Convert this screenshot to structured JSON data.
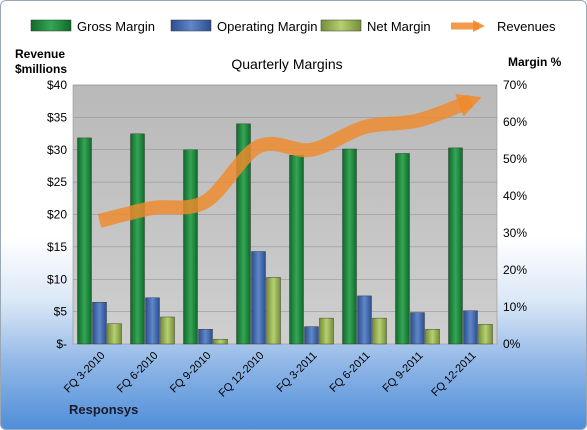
{
  "chart_data": {
    "type": "bar",
    "title": "Quarterly Margins",
    "categories": [
      "FQ 3-2010",
      "FQ 6-2010",
      "FQ 9-2010",
      "FQ 12-2010",
      "FQ 3-2011",
      "FQ 6-2011",
      "FQ 9-2011",
      "FQ 12-2011"
    ],
    "series": [
      {
        "name": "Gross Margin",
        "type": "bar",
        "axis": "right",
        "unit": "%",
        "color": "#1e8a3e",
        "values": [
          55.7,
          56.8,
          52.5,
          59.5,
          51.0,
          52.7,
          51.5,
          53.0
        ]
      },
      {
        "name": "Operating Margin",
        "type": "bar",
        "axis": "right",
        "unit": "%",
        "color": "#3f68b0",
        "values": [
          11.3,
          12.5,
          4.0,
          25.0,
          4.7,
          13.0,
          8.5,
          9.0
        ]
      },
      {
        "name": "Net Margin",
        "type": "bar",
        "axis": "right",
        "unit": "%",
        "color": "#98b552",
        "values": [
          5.5,
          7.3,
          1.3,
          18.0,
          7.0,
          7.0,
          4.0,
          5.3
        ]
      },
      {
        "name": "Revenues",
        "type": "line",
        "axis": "left",
        "unit": "$millions",
        "color": "#f08a2c",
        "values": [
          19.0,
          21.0,
          22.0,
          30.5,
          30.0,
          33.5,
          34.5,
          37.5
        ]
      }
    ],
    "y_left": {
      "label_line1": "Revenue",
      "label_line2": "$millions",
      "range": [
        0,
        40
      ],
      "ticks": [
        "$-",
        "$5",
        "$10",
        "$15",
        "$20",
        "$25",
        "$30",
        "$35",
        "$40"
      ]
    },
    "y_right": {
      "label": "Margin %",
      "range": [
        0,
        70
      ],
      "ticks": [
        "0%",
        "10%",
        "20%",
        "30%",
        "40%",
        "50%",
        "60%",
        "70%"
      ]
    },
    "grid": true,
    "legend_position": "top"
  },
  "footer": "Responsys",
  "colors": {
    "plot_bg": "#bfbfbf",
    "grid": "#8c8c8c",
    "revenue_line": "#f08a2c"
  }
}
